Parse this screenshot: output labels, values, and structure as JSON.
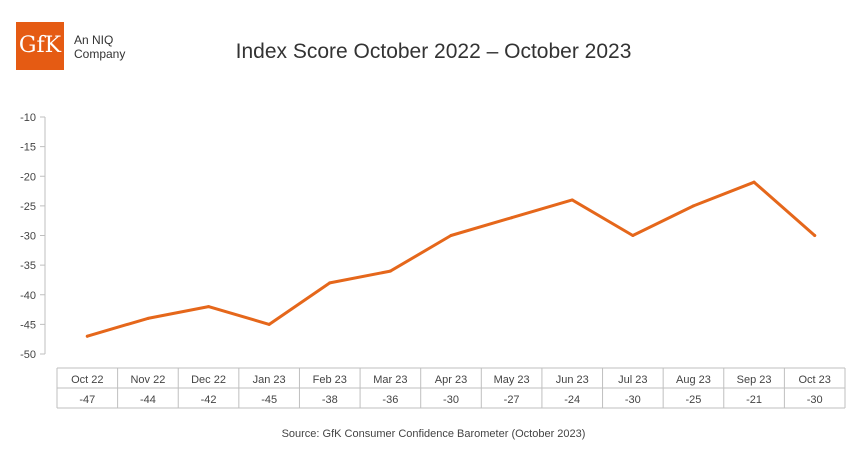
{
  "logo": {
    "mark": "GfK",
    "tagline_1": "An NIQ",
    "tagline_2": "Company",
    "color": "#E55B13"
  },
  "chart_data": {
    "type": "line",
    "title": "Index Score October 2022 – October 2023",
    "xlabel": "",
    "ylabel": "",
    "ylim": [
      -50,
      -10
    ],
    "yticks": [
      -10,
      -15,
      -20,
      -25,
      -30,
      -35,
      -40,
      -45,
      -50
    ],
    "grid": false,
    "categories": [
      "Oct 22",
      "Nov 22",
      "Dec 22",
      "Jan 23",
      "Feb 23",
      "Mar 23",
      "Apr 23",
      "May 23",
      "Jun 23",
      "Jul 23",
      "Aug 23",
      "Sep 23",
      "Oct 23"
    ],
    "series": [
      {
        "values": [
          -47,
          -44,
          -42,
          -45,
          -38,
          -36,
          -30,
          -27,
          -24,
          -30,
          -25,
          -21,
          -30
        ],
        "color": "#E5671B"
      }
    ],
    "table_values": [
      "-47",
      "-44",
      "-42",
      "-45",
      "-38",
      "-36",
      "-30",
      "-27",
      "-24",
      "-30",
      "-25",
      "-21",
      "-30"
    ]
  },
  "source": "Source: GfK Consumer Confidence Barometer (October 2023)"
}
